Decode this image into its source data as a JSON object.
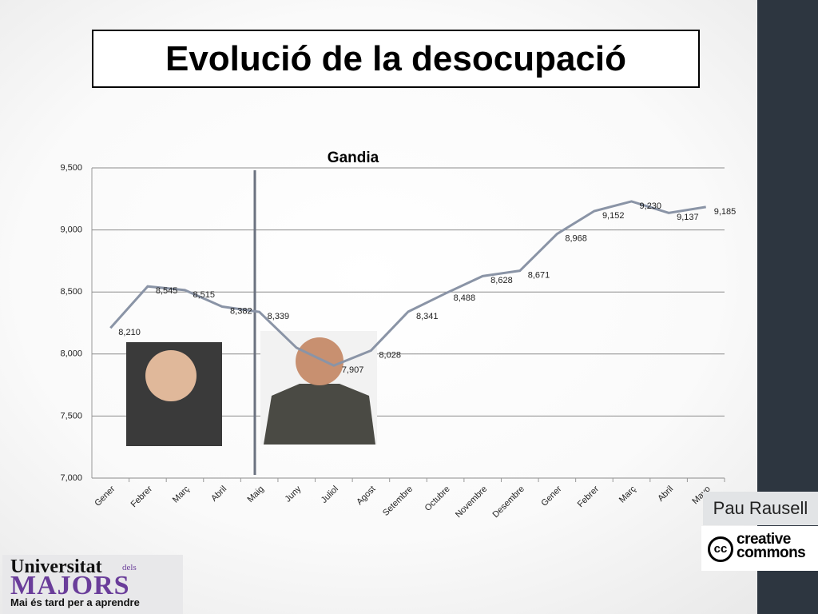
{
  "title": "Evolució de la desocupació",
  "chart_data": {
    "type": "line",
    "title": "Gandia",
    "categories": [
      "Gener",
      "Febrer",
      "Març",
      "Abril",
      "Maig",
      "Juny",
      "Juliol",
      "Agost",
      "Setembre",
      "Octubre",
      "Novembre",
      "Desembre",
      "Gener",
      "Febrer",
      "Març",
      "Abril",
      "Mayo"
    ],
    "series": [
      {
        "color": "#8a94a6",
        "values": [
          8210,
          8545,
          8515,
          8382,
          8339,
          8050,
          7907,
          8028,
          8341,
          8488,
          8628,
          8671,
          8968,
          9152,
          9230,
          9137,
          9185
        ],
        "value_labels": [
          "8,210",
          "8,545",
          "8,515",
          "8,382",
          "8,339",
          null,
          "7,907",
          "8,028",
          "8,341",
          "8,488",
          "8,628",
          "8,671",
          "8,968",
          "9,152",
          "9,230",
          "9,137",
          "9,185"
        ]
      }
    ],
    "ylim": [
      7000,
      9500
    ],
    "yticks": [
      {
        "value": 7000,
        "label": "7,000"
      },
      {
        "value": 7500,
        "label": "7,500"
      },
      {
        "value": 8000,
        "label": "8,000"
      },
      {
        "value": 8500,
        "label": "8,500"
      },
      {
        "value": 9000,
        "label": "9,000"
      },
      {
        "value": 9500,
        "label": "9,500"
      }
    ],
    "grid": true
  },
  "author": "Pau Rausell",
  "license": {
    "badge": "cc",
    "line1": "creative",
    "line2": "commons"
  },
  "logo": {
    "line1": "Universitat",
    "dels": "dels",
    "name": "MAJORS",
    "motto": "Mai és tard per a aprendre"
  }
}
